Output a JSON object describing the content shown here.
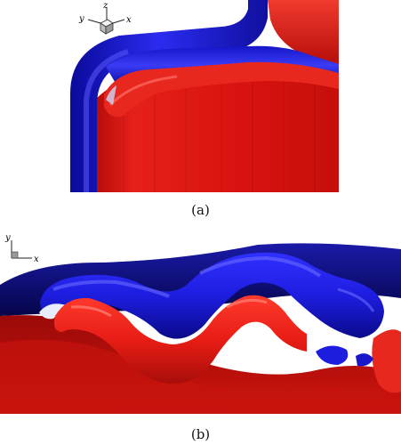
{
  "figure": {
    "panel_a": {
      "caption": "(a)",
      "axes": {
        "z": "z",
        "y": "y",
        "x": "x"
      }
    },
    "panel_b": {
      "caption": "(b)",
      "axes": {
        "y": "y",
        "x": "x"
      }
    }
  },
  "colors": {
    "blue_surface": "#1a1ad6",
    "red_surface": "#e01a14",
    "background": "#ffffff"
  }
}
